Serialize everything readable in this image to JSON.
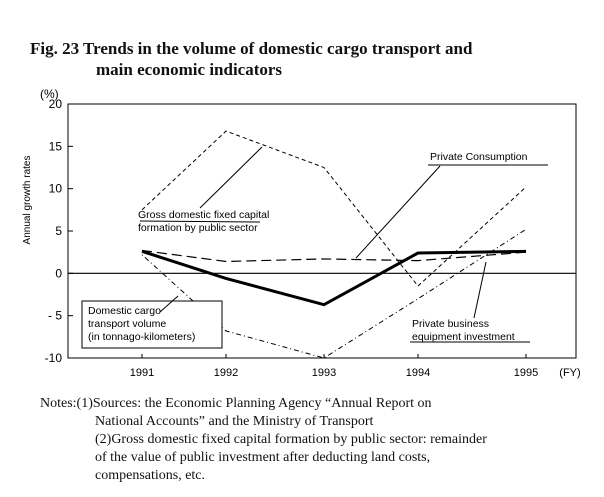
{
  "title": {
    "line1": "Fig. 23 Trends in the volume of domestic cargo transport and",
    "line2": "main economic indicators"
  },
  "chart_data": {
    "type": "line",
    "y_unit": "(%)",
    "ylabel": "Annual growth rates",
    "x_unit": "(FY)",
    "categories": [
      "1991",
      "1992",
      "1993",
      "1994",
      "1995"
    ],
    "ylim": [
      -10,
      20
    ],
    "yticks": [
      "20",
      "15",
      "10",
      "5",
      "0",
      "- 5",
      "-10"
    ],
    "grid": false,
    "series": [
      {
        "name": "Domestic cargo transport volume (in tonnago-kilometers)",
        "style": "thick-solid",
        "values": [
          2.6,
          -0.6,
          -3.7,
          2.4,
          2.6
        ]
      },
      {
        "name": "Gross domestic fixed capital formation by public sector",
        "style": "short-dash",
        "values": [
          7.5,
          16.8,
          12.5,
          -1.5,
          10.2
        ]
      },
      {
        "name": "Private Consumption",
        "style": "long-dash",
        "values": [
          2.7,
          1.4,
          1.7,
          1.5,
          2.5
        ]
      },
      {
        "name": "Private business equipment investment",
        "style": "dot-dash",
        "values": [
          2.2,
          -6.8,
          -10.0,
          -3.0,
          5.2
        ]
      }
    ],
    "annotations": [
      {
        "label_lines": [
          "Gross domestic fixed capital",
          "formation by public sector"
        ]
      },
      {
        "label_lines": [
          "Private Consumption"
        ]
      },
      {
        "label_lines": [
          "Domestic cargo",
          "transport volume",
          "(in tonnago-kilometers)"
        ]
      },
      {
        "label_lines": [
          "Private business",
          "equipment investment"
        ]
      }
    ]
  },
  "notes": {
    "line1": "Notes:(1)Sources: the Economic Planning Agency “Annual Report on",
    "line2": "National Accounts”  and the Ministry of Transport",
    "line3": "(2)Gross domestic fixed capital formation by public sector: remainder",
    "line4": "of the value of public investment after deducting land costs,",
    "line5": "compensations, etc."
  }
}
